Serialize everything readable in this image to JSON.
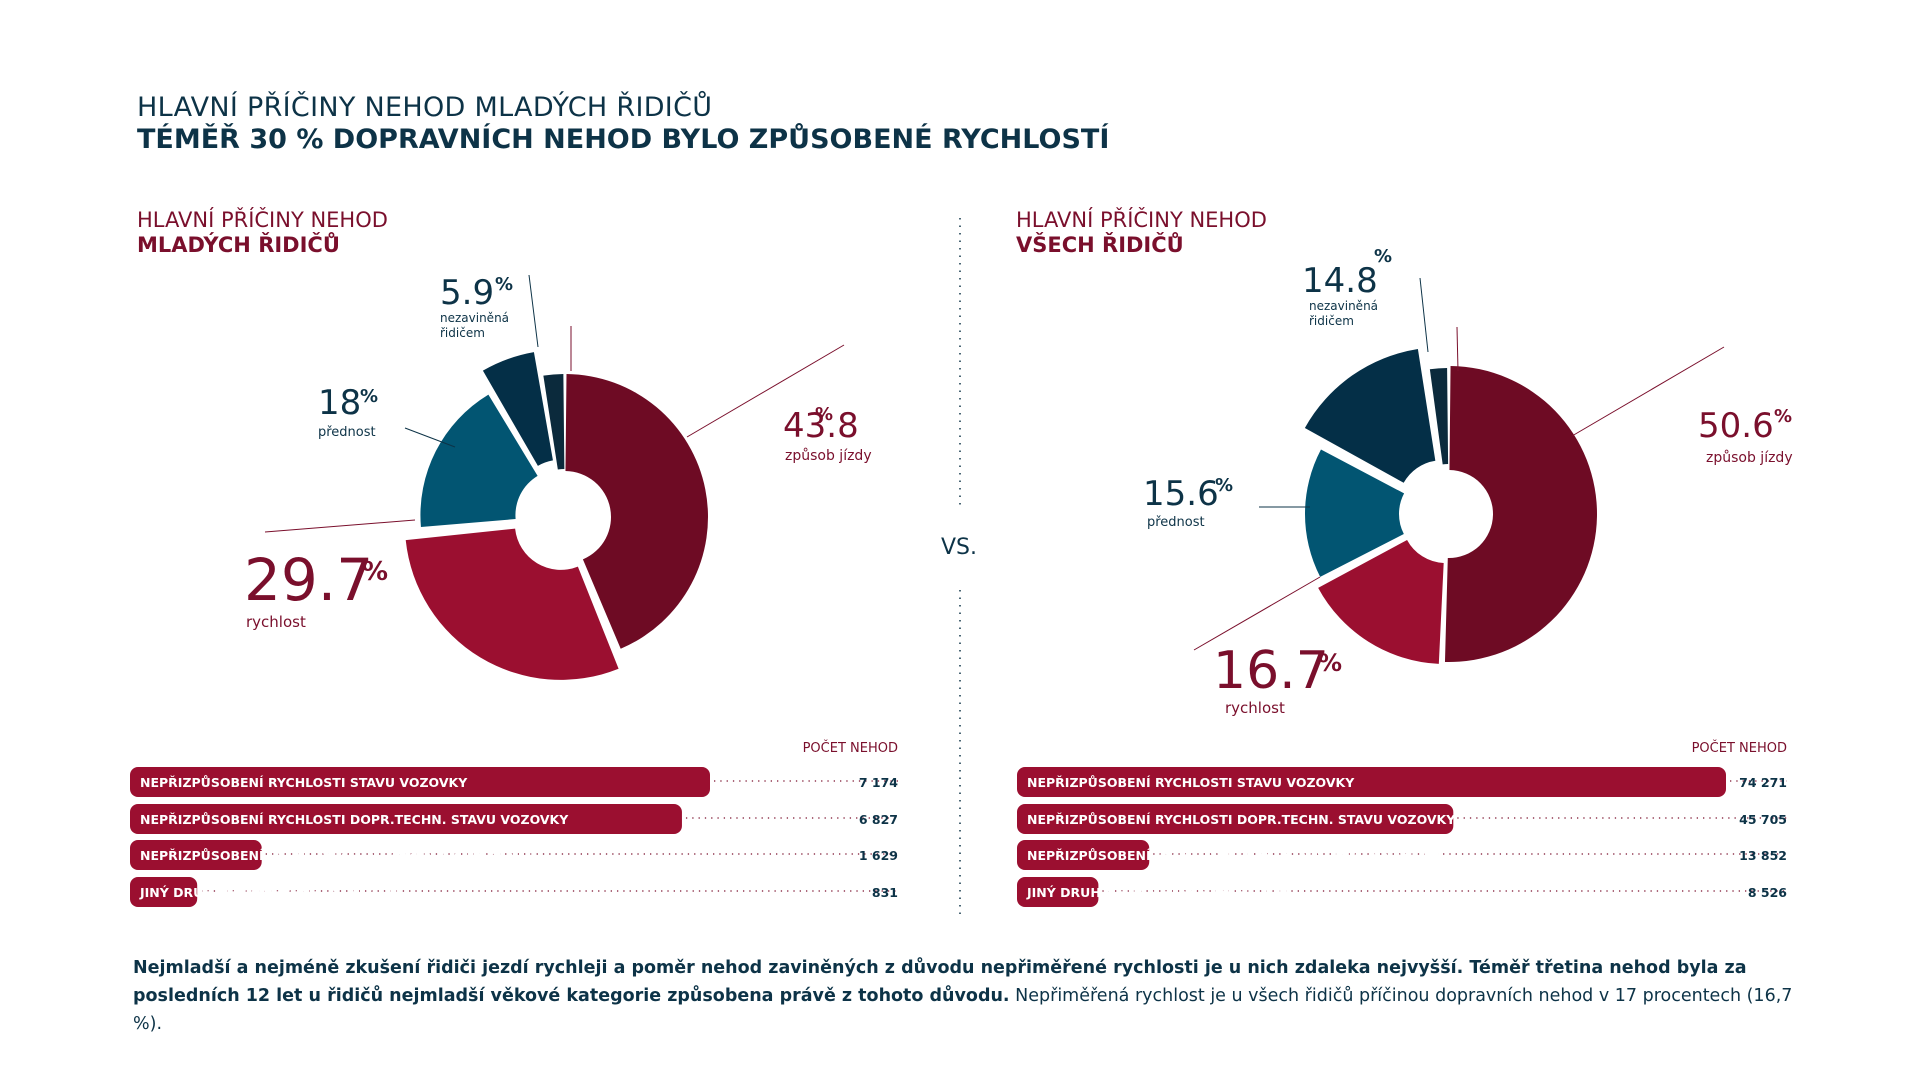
{
  "header": {
    "line1": "HLAVNÍ PŘÍČINY NEHOD MLADÝCH ŘIDIČŮ",
    "line2": "TÉMĚŘ 30 % DOPRAVNÍCH NEHOD BYLO ZPŮSOBENÉ RYCHLOSTÍ"
  },
  "vs_label": "VS.",
  "colors": {
    "zpusob_jizdy": "#6e0b24",
    "rychlost": "#9b0f30",
    "prednost": "#025572",
    "nezavinena": "#042f47",
    "other": "#0b2a3c",
    "bar": "#9b0f30",
    "text_red": "#7a0f2c",
    "text_blue": "#0d3347"
  },
  "chart_data": [
    {
      "type": "pie",
      "title_line1": "HLAVNÍ PŘÍČINY NEHOD",
      "title_line2": "MLADÝCH ŘIDIČŮ",
      "slices": [
        {
          "label": "způsob jízdy",
          "value": 43.8,
          "display": "43.8"
        },
        {
          "label": "rychlost",
          "value": 29.7,
          "display": "29.7"
        },
        {
          "label": "přednost",
          "value": 18,
          "display": "18"
        },
        {
          "label": "nezaviněná řidičem",
          "value": 5.9,
          "display": "5.9"
        },
        {
          "label": "",
          "value": 2.6,
          "display": ""
        }
      ]
    },
    {
      "type": "pie",
      "title_line1": "HLAVNÍ PŘÍČINY NEHOD",
      "title_line2": "VŠECH ŘIDIČŮ",
      "slices": [
        {
          "label": "způsob jízdy",
          "value": 50.6,
          "display": "50.6"
        },
        {
          "label": "rychlost",
          "value": 16.7,
          "display": "16.7"
        },
        {
          "label": "přednost",
          "value": 15.6,
          "display": "15.6"
        },
        {
          "label": "nezaviněná řidičem",
          "value": 14.8,
          "display": "14.8"
        },
        {
          "label": "",
          "value": 2.3,
          "display": ""
        }
      ]
    },
    {
      "type": "bar",
      "header": "POČET NEHOD",
      "categories": [
        "NEPŘIZPŮSOBENÍ RYCHLOSTI STAVU VOZOVKY",
        "NEPŘIZPŮSOBENÍ RYCHLOSTI DOPR.TECHN. STAVU VOZOVKY",
        "NEPŘIZPŮSOBENÍ RYCHL. VLASTN. VOZIDLA A NÁKLADU",
        "JINÝ DRUH NEPŘIMĚŘENÉ RYCHLOSTI"
      ],
      "values": [
        7174,
        6827,
        1629,
        831
      ],
      "value_labels": [
        "7 174",
        "6 827",
        "1 629",
        "831"
      ]
    },
    {
      "type": "bar",
      "header": "POČET NEHOD",
      "categories": [
        "NEPŘIZPŮSOBENÍ RYCHLOSTI STAVU VOZOVKY",
        "NEPŘIZPŮSOBENÍ RYCHLOSTI DOPR.TECHN. STAVU VOZOVKY",
        "NEPŘIZPŮSOBENÍ RYCHLOSTI VLASTN. VOZIDLA A NÁKLADU",
        "JINÝ DRUH NEPŘIMĚŘENÉ RYCHLOSTI"
      ],
      "values": [
        74271,
        45705,
        13852,
        8526
      ],
      "value_labels": [
        "74 271",
        "45 705",
        "13 852",
        "8 526"
      ]
    }
  ],
  "footer": {
    "bold": "Nejmladší a nejméně zkušení řidiči jezdí rychleji a poměr nehod zaviněných z důvodu nepřiměřené rychlosti je u nich zdaleka nejvyšší. Téměř třetina nehod byla za posledních 12 let u řidičů nejmladší věkové kategorie způsobena právě z tohoto důvodu.",
    "normal": " Nepřiměřená rychlost je u všech řidičů příčinou dopravních nehod v 17 procentech (16,7 %)."
  }
}
